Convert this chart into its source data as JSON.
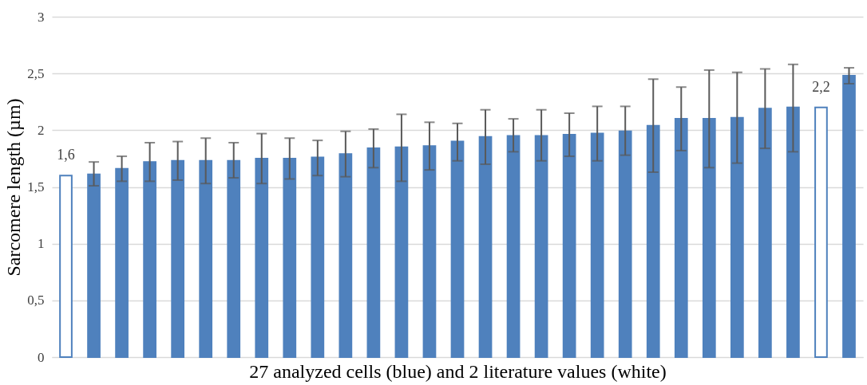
{
  "chart_data": {
    "type": "bar",
    "xlabel": "27 analyzed cells (blue) and 2 literature values (white)",
    "ylabel": "Sarcomere length (µm)",
    "categories": [
      null,
      null,
      null,
      null,
      null,
      null,
      null,
      null,
      null,
      null,
      null,
      null,
      null,
      null,
      null,
      null,
      null,
      null,
      null,
      null,
      null,
      null,
      null,
      null,
      null,
      null,
      null,
      null,
      null
    ],
    "values": [
      1.6,
      1.61,
      1.66,
      1.72,
      1.73,
      1.73,
      1.73,
      1.75,
      1.75,
      1.76,
      1.79,
      1.84,
      1.85,
      1.86,
      1.9,
      1.94,
      1.95,
      1.95,
      1.96,
      1.97,
      1.99,
      2.04,
      2.1,
      2.1,
      2.11,
      2.19,
      2.2,
      2.2,
      2.48
    ],
    "errors": [
      null,
      [
        1.51,
        1.72
      ],
      [
        1.55,
        1.77
      ],
      [
        1.55,
        1.89
      ],
      [
        1.56,
        1.9
      ],
      [
        1.53,
        1.93
      ],
      [
        1.58,
        1.89
      ],
      [
        1.53,
        1.97
      ],
      [
        1.57,
        1.93
      ],
      [
        1.6,
        1.91
      ],
      [
        1.59,
        1.99
      ],
      [
        1.67,
        2.01
      ],
      [
        1.55,
        2.14
      ],
      [
        1.65,
        2.07
      ],
      [
        1.73,
        2.06
      ],
      [
        1.7,
        2.18
      ],
      [
        1.81,
        2.1
      ],
      [
        1.73,
        2.18
      ],
      [
        1.77,
        2.15
      ],
      [
        1.73,
        2.21
      ],
      [
        1.78,
        2.21
      ],
      [
        1.63,
        2.45
      ],
      [
        1.82,
        2.38
      ],
      [
        1.67,
        2.53
      ],
      [
        1.71,
        2.51
      ],
      [
        1.84,
        2.54
      ],
      [
        1.81,
        2.58
      ],
      null,
      [
        2.41,
        2.55
      ]
    ],
    "value_labels": [
      "1,6",
      null,
      null,
      null,
      null,
      null,
      null,
      null,
      null,
      null,
      null,
      null,
      null,
      null,
      null,
      null,
      null,
      null,
      null,
      null,
      null,
      null,
      null,
      null,
      null,
      null,
      null,
      "2,2",
      null
    ],
    "color": "#4f81bd",
    "colors": [
      "#ffffff",
      "#4f81bd",
      "#4f81bd",
      "#4f81bd",
      "#4f81bd",
      "#4f81bd",
      "#4f81bd",
      "#4f81bd",
      "#4f81bd",
      "#4f81bd",
      "#4f81bd",
      "#4f81bd",
      "#4f81bd",
      "#4f81bd",
      "#4f81bd",
      "#4f81bd",
      "#4f81bd",
      "#4f81bd",
      "#4f81bd",
      "#4f81bd",
      "#4f81bd",
      "#4f81bd",
      "#4f81bd",
      "#4f81bd",
      "#4f81bd",
      "#4f81bd",
      "#4f81bd",
      "#ffffff",
      "#4f81bd"
    ],
    "ylim": [
      0,
      3
    ],
    "yticks": [
      0,
      {
        "value": 0.5,
        "label": "0,5"
      },
      1,
      {
        "value": 1.5,
        "label": "1,5"
      },
      2,
      {
        "value": 2.5,
        "label": "2,5"
      },
      3
    ],
    "grid": "y",
    "tick_labels": "y"
  }
}
